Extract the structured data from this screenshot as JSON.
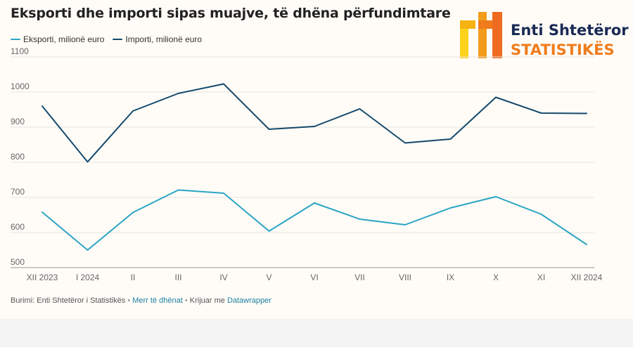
{
  "title": "Eksporti dhe importi sipas muajve, të dhëna përfundimtare",
  "logo": {
    "line1": "Enti Shtetëror i",
    "line2": "STATISTIKËS"
  },
  "colors": {
    "export": "#2ba5c4",
    "import": "#15496c",
    "grid": "#e6e3de",
    "axis_text": "#666666"
  },
  "chart_data": {
    "type": "line",
    "title": "Eksporti dhe importi sipas muajve, të dhëna përfundimtare",
    "xlabel": "",
    "ylabel": "",
    "categories": [
      "XII 2023",
      "I 2024",
      "II",
      "III",
      "IV",
      "V",
      "VI",
      "VII",
      "VIII",
      "IX",
      "X",
      "XI",
      "XII 2024"
    ],
    "yticks": [
      500,
      600,
      700,
      800,
      900,
      1000,
      1100
    ],
    "ylim": [
      500,
      1100
    ],
    "grid": true,
    "legend_position": "top-left",
    "series": [
      {
        "name": "Eksporti, milionë euro",
        "color": "#2ba5c4",
        "values": [
          658,
          550,
          657,
          721,
          712,
          604,
          684,
          638,
          622,
          670,
          702,
          652,
          566
        ]
      },
      {
        "name": "Importi, milionë euro",
        "color": "#15496c",
        "values": [
          960,
          801,
          946,
          996,
          1023,
          894,
          902,
          952,
          855,
          866,
          985,
          940,
          939
        ]
      }
    ]
  },
  "footer": {
    "source": "Burimi: Enti Shtetëror i Statistikës",
    "sep1": "•",
    "get_data": "Merr të dhënat",
    "sep2": "•",
    "created_with": "Krijuar me",
    "datawrapper": "Datawrapper"
  }
}
